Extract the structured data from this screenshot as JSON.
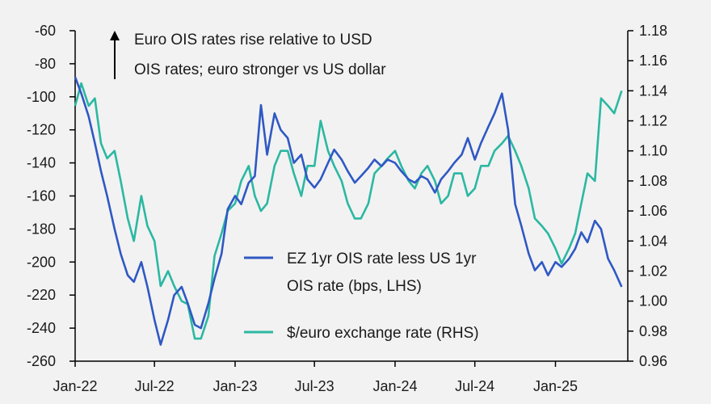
{
  "chart_data": {
    "type": "line",
    "title": "",
    "annotation": {
      "line1": "Euro OIS rates rise relative to USD",
      "line2": "OIS rates; euro stronger vs US dollar"
    },
    "x_ticks": [
      "Jan-22",
      "Jul-22",
      "Jan-23",
      "Jul-23",
      "Jan-24",
      "Jul-24",
      "Jan-25"
    ],
    "x_range": [
      "2022-01-01",
      "2025-06-15"
    ],
    "y_left": {
      "ticks": [
        -60,
        -80,
        -100,
        -120,
        -140,
        -160,
        -180,
        -200,
        -220,
        -240,
        -260
      ],
      "range": [
        -260,
        -60
      ]
    },
    "y_right": {
      "ticks": [
        "1.18",
        "1.16",
        "1.14",
        "1.12",
        "1.10",
        "1.08",
        "1.06",
        "1.04",
        "1.02",
        "1.00",
        "0.98",
        "0.96"
      ],
      "range": [
        0.96,
        1.18
      ]
    },
    "legend_placement": "center-right",
    "grid": false,
    "series": [
      {
        "name_line1": "EZ 1yr OIS rate less US 1yr",
        "name_line2": "OIS rate (bps, LHS)",
        "axis": "left",
        "color": "#2f58c4",
        "points": [
          [
            "2022-01-01",
            -88
          ],
          [
            "2022-01-15",
            -98
          ],
          [
            "2022-02-01",
            -112
          ],
          [
            "2022-02-15",
            -128
          ],
          [
            "2022-03-01",
            -145
          ],
          [
            "2022-03-15",
            -160
          ],
          [
            "2022-04-01",
            -180
          ],
          [
            "2022-04-15",
            -195
          ],
          [
            "2022-05-01",
            -208
          ],
          [
            "2022-05-15",
            -212
          ],
          [
            "2022-06-01",
            -200
          ],
          [
            "2022-06-15",
            -215
          ],
          [
            "2022-07-01",
            -235
          ],
          [
            "2022-07-15",
            -250
          ],
          [
            "2022-08-01",
            -235
          ],
          [
            "2022-08-15",
            -220
          ],
          [
            "2022-09-01",
            -215
          ],
          [
            "2022-09-15",
            -225
          ],
          [
            "2022-10-01",
            -238
          ],
          [
            "2022-10-15",
            -240
          ],
          [
            "2022-11-01",
            -225
          ],
          [
            "2022-11-15",
            -210
          ],
          [
            "2022-12-01",
            -195
          ],
          [
            "2022-12-15",
            -168
          ],
          [
            "2023-01-01",
            -160
          ],
          [
            "2023-01-15",
            -165
          ],
          [
            "2023-02-01",
            -152
          ],
          [
            "2023-02-15",
            -148
          ],
          [
            "2023-03-01",
            -105
          ],
          [
            "2023-03-15",
            -135
          ],
          [
            "2023-04-01",
            -110
          ],
          [
            "2023-04-15",
            -120
          ],
          [
            "2023-05-01",
            -125
          ],
          [
            "2023-05-15",
            -140
          ],
          [
            "2023-06-01",
            -135
          ],
          [
            "2023-06-15",
            -150
          ],
          [
            "2023-07-01",
            -155
          ],
          [
            "2023-07-15",
            -150
          ],
          [
            "2023-08-01",
            -140
          ],
          [
            "2023-08-15",
            -132
          ],
          [
            "2023-09-01",
            -138
          ],
          [
            "2023-09-15",
            -145
          ],
          [
            "2023-10-01",
            -152
          ],
          [
            "2023-10-15",
            -148
          ],
          [
            "2023-11-01",
            -143
          ],
          [
            "2023-11-15",
            -138
          ],
          [
            "2023-12-01",
            -142
          ],
          [
            "2023-12-15",
            -138
          ],
          [
            "2024-01-01",
            -140
          ],
          [
            "2024-01-15",
            -145
          ],
          [
            "2024-02-01",
            -150
          ],
          [
            "2024-02-15",
            -152
          ],
          [
            "2024-03-01",
            -148
          ],
          [
            "2024-03-15",
            -150
          ],
          [
            "2024-04-01",
            -158
          ],
          [
            "2024-04-15",
            -150
          ],
          [
            "2024-05-01",
            -145
          ],
          [
            "2024-05-15",
            -140
          ],
          [
            "2024-06-01",
            -135
          ],
          [
            "2024-06-15",
            -125
          ],
          [
            "2024-07-01",
            -138
          ],
          [
            "2024-07-15",
            -128
          ],
          [
            "2024-08-01",
            -118
          ],
          [
            "2024-08-15",
            -110
          ],
          [
            "2024-09-01",
            -98
          ],
          [
            "2024-09-15",
            -120
          ],
          [
            "2024-10-01",
            -165
          ],
          [
            "2024-10-15",
            -178
          ],
          [
            "2024-11-01",
            -195
          ],
          [
            "2024-11-15",
            -205
          ],
          [
            "2024-12-01",
            -200
          ],
          [
            "2024-12-15",
            -208
          ],
          [
            "2025-01-01",
            -200
          ],
          [
            "2025-01-15",
            -203
          ],
          [
            "2025-02-01",
            -198
          ],
          [
            "2025-02-15",
            -192
          ],
          [
            "2025-03-01",
            -182
          ],
          [
            "2025-03-15",
            -188
          ],
          [
            "2025-04-01",
            -175
          ],
          [
            "2025-04-15",
            -180
          ],
          [
            "2025-05-01",
            -198
          ],
          [
            "2025-05-15",
            -205
          ],
          [
            "2025-06-01",
            -215
          ]
        ]
      },
      {
        "name": "$/euro exchange rate (RHS)",
        "axis": "right",
        "color": "#2bb8a2",
        "points": [
          [
            "2022-01-01",
            1.13
          ],
          [
            "2022-01-15",
            1.145
          ],
          [
            "2022-02-01",
            1.13
          ],
          [
            "2022-02-15",
            1.135
          ],
          [
            "2022-03-01",
            1.105
          ],
          [
            "2022-03-15",
            1.095
          ],
          [
            "2022-04-01",
            1.1
          ],
          [
            "2022-04-15",
            1.08
          ],
          [
            "2022-05-01",
            1.055
          ],
          [
            "2022-05-15",
            1.04
          ],
          [
            "2022-06-01",
            1.07
          ],
          [
            "2022-06-15",
            1.05
          ],
          [
            "2022-07-01",
            1.04
          ],
          [
            "2022-07-15",
            1.01
          ],
          [
            "2022-08-01",
            1.02
          ],
          [
            "2022-08-15",
            1.01
          ],
          [
            "2022-09-01",
            1.0
          ],
          [
            "2022-09-15",
            0.998
          ],
          [
            "2022-10-01",
            0.975
          ],
          [
            "2022-10-15",
            0.975
          ],
          [
            "2022-11-01",
            0.99
          ],
          [
            "2022-11-15",
            1.03
          ],
          [
            "2022-12-01",
            1.045
          ],
          [
            "2022-12-15",
            1.06
          ],
          [
            "2023-01-01",
            1.065
          ],
          [
            "2023-01-15",
            1.08
          ],
          [
            "2023-02-01",
            1.09
          ],
          [
            "2023-02-15",
            1.07
          ],
          [
            "2023-03-01",
            1.06
          ],
          [
            "2023-03-15",
            1.065
          ],
          [
            "2023-04-01",
            1.09
          ],
          [
            "2023-04-15",
            1.1
          ],
          [
            "2023-05-01",
            1.1
          ],
          [
            "2023-05-15",
            1.085
          ],
          [
            "2023-06-01",
            1.07
          ],
          [
            "2023-06-15",
            1.09
          ],
          [
            "2023-07-01",
            1.09
          ],
          [
            "2023-07-15",
            1.12
          ],
          [
            "2023-08-01",
            1.1
          ],
          [
            "2023-08-15",
            1.09
          ],
          [
            "2023-09-01",
            1.08
          ],
          [
            "2023-09-15",
            1.065
          ],
          [
            "2023-10-01",
            1.055
          ],
          [
            "2023-10-15",
            1.055
          ],
          [
            "2023-11-01",
            1.065
          ],
          [
            "2023-11-15",
            1.085
          ],
          [
            "2023-12-01",
            1.09
          ],
          [
            "2023-12-15",
            1.095
          ],
          [
            "2024-01-01",
            1.1
          ],
          [
            "2024-01-15",
            1.09
          ],
          [
            "2024-02-01",
            1.08
          ],
          [
            "2024-02-15",
            1.075
          ],
          [
            "2024-03-01",
            1.085
          ],
          [
            "2024-03-15",
            1.09
          ],
          [
            "2024-04-01",
            1.08
          ],
          [
            "2024-04-15",
            1.065
          ],
          [
            "2024-05-01",
            1.07
          ],
          [
            "2024-05-15",
            1.085
          ],
          [
            "2024-06-01",
            1.085
          ],
          [
            "2024-06-15",
            1.07
          ],
          [
            "2024-07-01",
            1.075
          ],
          [
            "2024-07-15",
            1.09
          ],
          [
            "2024-08-01",
            1.09
          ],
          [
            "2024-08-15",
            1.1
          ],
          [
            "2024-09-01",
            1.105
          ],
          [
            "2024-09-15",
            1.11
          ],
          [
            "2024-10-01",
            1.1
          ],
          [
            "2024-10-15",
            1.09
          ],
          [
            "2024-11-01",
            1.075
          ],
          [
            "2024-11-15",
            1.055
          ],
          [
            "2024-12-01",
            1.05
          ],
          [
            "2024-12-15",
            1.045
          ],
          [
            "2025-01-01",
            1.035
          ],
          [
            "2025-01-15",
            1.025
          ],
          [
            "2025-02-01",
            1.035
          ],
          [
            "2025-02-15",
            1.045
          ],
          [
            "2025-03-01",
            1.065
          ],
          [
            "2025-03-15",
            1.085
          ],
          [
            "2025-04-01",
            1.08
          ],
          [
            "2025-04-15",
            1.135
          ],
          [
            "2025-05-01",
            1.13
          ],
          [
            "2025-05-15",
            1.125
          ],
          [
            "2025-06-01",
            1.14
          ]
        ]
      }
    ]
  }
}
